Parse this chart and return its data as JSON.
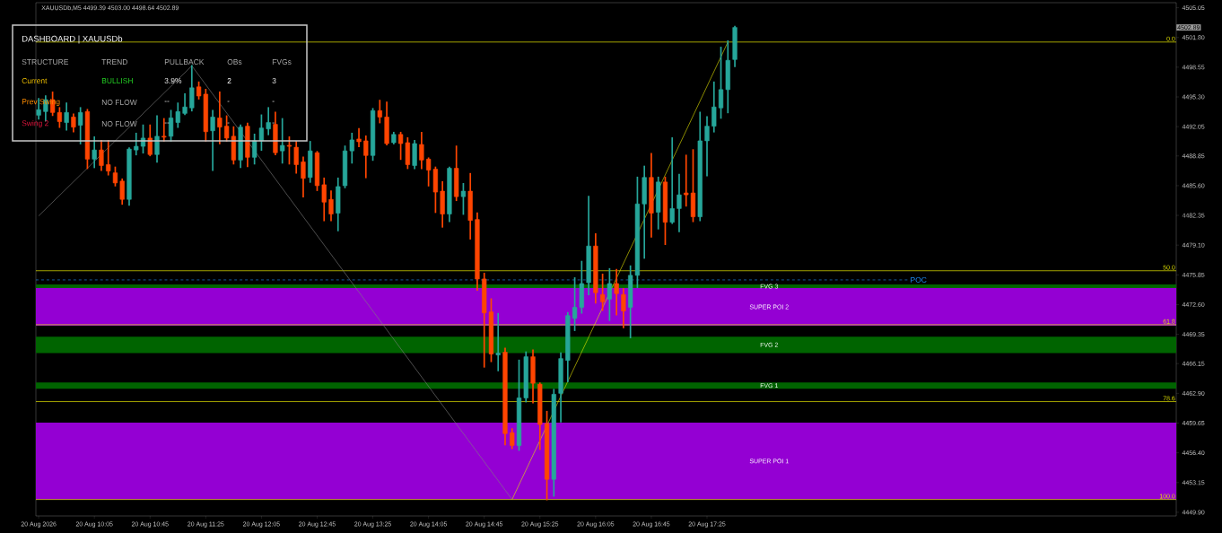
{
  "chart_data": {
    "type": "candlestick",
    "title": "XAUUSDb,M5  4499.39 4503.00 4498.64 4502.89",
    "x": [
      "2026-08-20T09:25",
      "2026-08-20T09:30",
      "2026-08-20T09:35",
      "2026-08-20T09:40",
      "2026-08-20T09:45",
      "2026-08-20T09:50",
      "2026-08-20T09:55",
      "2026-08-20T10:00",
      "2026-08-20T10:05",
      "2026-08-20T10:10",
      "2026-08-20T10:15",
      "2026-08-20T10:20",
      "2026-08-20T10:25",
      "2026-08-20T10:30",
      "2026-08-20T10:35",
      "2026-08-20T10:40",
      "2026-08-20T10:45",
      "2026-08-20T10:50",
      "2026-08-20T10:55",
      "2026-08-20T11:00",
      "2026-08-20T11:05",
      "2026-08-20T11:10",
      "2026-08-20T11:15",
      "2026-08-20T11:20",
      "2026-08-20T11:25",
      "2026-08-20T11:30",
      "2026-08-20T11:35",
      "2026-08-20T11:40",
      "2026-08-20T11:45",
      "2026-08-20T11:50",
      "2026-08-20T11:55",
      "2026-08-20T12:00",
      "2026-08-20T12:05",
      "2026-08-20T12:10",
      "2026-08-20T12:15",
      "2026-08-20T12:20",
      "2026-08-20T12:25",
      "2026-08-20T12:30",
      "2026-08-20T12:35",
      "2026-08-20T12:40",
      "2026-08-20T12:45",
      "2026-08-20T12:50",
      "2026-08-20T12:55",
      "2026-08-20T13:00",
      "2026-08-20T13:05",
      "2026-08-20T13:10",
      "2026-08-20T13:15",
      "2026-08-20T13:20",
      "2026-08-20T13:25",
      "2026-08-20T13:30",
      "2026-08-20T13:35",
      "2026-08-20T13:40",
      "2026-08-20T13:45",
      "2026-08-20T13:50",
      "2026-08-20T13:55",
      "2026-08-20T14:00",
      "2026-08-20T14:05",
      "2026-08-20T14:10",
      "2026-08-20T14:15",
      "2026-08-20T14:20",
      "2026-08-20T14:25",
      "2026-08-20T14:30",
      "2026-08-20T14:35",
      "2026-08-20T14:40",
      "2026-08-20T14:45",
      "2026-08-20T14:50",
      "2026-08-20T14:55",
      "2026-08-20T15:00",
      "2026-08-20T15:05",
      "2026-08-20T15:10",
      "2026-08-20T15:15",
      "2026-08-20T15:20",
      "2026-08-20T15:25",
      "2026-08-20T15:30",
      "2026-08-20T15:35",
      "2026-08-20T15:40",
      "2026-08-20T15:45",
      "2026-08-20T15:50",
      "2026-08-20T15:55",
      "2026-08-20T16:00",
      "2026-08-20T16:05",
      "2026-08-20T16:10",
      "2026-08-20T16:15",
      "2026-08-20T16:20",
      "2026-08-20T16:25",
      "2026-08-20T16:30",
      "2026-08-20T16:35",
      "2026-08-20T16:40",
      "2026-08-20T16:45",
      "2026-08-20T16:50",
      "2026-08-20T16:55",
      "2026-08-20T17:00",
      "2026-08-20T17:05",
      "2026-08-20T17:10",
      "2026-08-20T17:15",
      "2026-08-20T17:20",
      "2026-08-20T17:25",
      "2026-08-20T17:30",
      "2026-08-20T17:35",
      "2026-08-20T17:40",
      "2026-08-20T17:45"
    ],
    "ohlc": [
      [
        4493.3,
        4495.1,
        4492.9,
        4493.9
      ],
      [
        4493.7,
        4495.4,
        4492.7,
        4495.0
      ],
      [
        4495.0,
        4495.8,
        4493.3,
        4493.6
      ],
      [
        4493.6,
        4494.1,
        4492.0,
        4492.6
      ],
      [
        4492.5,
        4494.6,
        4491.7,
        4493.6
      ],
      [
        4493.1,
        4493.4,
        4491.5,
        4492.0
      ],
      [
        4492.2,
        4494.1,
        4490.2,
        4493.6
      ],
      [
        4493.7,
        4493.9,
        4487.5,
        4488.5
      ],
      [
        4488.5,
        4490.9,
        4487.6,
        4489.5
      ],
      [
        4489.5,
        4490.5,
        4487.3,
        4487.8
      ],
      [
        4487.9,
        4490.5,
        4486.8,
        4487.2
      ],
      [
        4487.0,
        4487.6,
        4485.6,
        4485.9
      ],
      [
        4486.1,
        4486.3,
        4483.6,
        4484.1
      ],
      [
        4484.1,
        4489.7,
        4483.5,
        4489.6
      ],
      [
        4489.5,
        4491.3,
        4489.0,
        4489.9
      ],
      [
        4489.9,
        4492.2,
        4489.2,
        4490.8
      ],
      [
        4490.8,
        4492.2,
        4488.9,
        4489.0
      ],
      [
        4489.0,
        4493.2,
        4488.2,
        4491.0
      ],
      [
        4491.0,
        4492.9,
        4490.5,
        4490.9
      ],
      [
        4491.0,
        4493.8,
        4490.5,
        4493.0
      ],
      [
        4492.5,
        4494.6,
        4492.0,
        4493.7
      ],
      [
        4493.5,
        4495.6,
        4493.4,
        4494.2
      ],
      [
        4494.1,
        4498.7,
        4493.8,
        4496.3
      ],
      [
        4496.4,
        4496.9,
        4495.1,
        4495.4
      ],
      [
        4495.6,
        4496.1,
        4490.5,
        4491.5
      ],
      [
        4491.6,
        4493.8,
        4487.3,
        4493.1
      ],
      [
        4493.0,
        4495.8,
        4490.2,
        4492.0
      ],
      [
        4492.1,
        4493.2,
        4490.5,
        4490.8
      ],
      [
        4491.0,
        4492.0,
        4488.0,
        4488.4
      ],
      [
        4488.4,
        4492.2,
        4487.6,
        4492.0
      ],
      [
        4492.1,
        4492.4,
        4487.7,
        4488.7
      ],
      [
        4488.7,
        4491.2,
        4488.0,
        4490.5
      ],
      [
        4490.5,
        4493.3,
        4489.5,
        4491.9
      ],
      [
        4491.8,
        4494.1,
        4491.2,
        4492.5
      ],
      [
        4492.3,
        4493.6,
        4489.0,
        4489.2
      ],
      [
        4489.4,
        4492.9,
        4488.1,
        4490.0
      ],
      [
        4490.0,
        4490.9,
        4488.0,
        4489.9
      ],
      [
        4489.8,
        4490.4,
        4487.0,
        4487.9
      ],
      [
        4488.2,
        4488.7,
        4484.4,
        4486.4
      ],
      [
        4486.5,
        4490.4,
        4486.0,
        4489.4
      ],
      [
        4489.2,
        4489.3,
        4485.1,
        4485.6
      ],
      [
        4485.7,
        4486.4,
        4481.8,
        4483.8
      ],
      [
        4484.1,
        4485.0,
        4481.8,
        4482.5
      ],
      [
        4482.6,
        4486.4,
        4480.7,
        4485.5
      ],
      [
        4485.6,
        4489.9,
        4485.4,
        4489.4
      ],
      [
        4489.4,
        4491.3,
        4488.1,
        4490.6
      ],
      [
        4490.7,
        4491.8,
        4489.9,
        4490.4
      ],
      [
        4490.5,
        4491.0,
        4486.5,
        4488.9
      ],
      [
        4488.9,
        4494.0,
        4488.4,
        4493.8
      ],
      [
        4493.8,
        4494.9,
        4492.5,
        4493.1
      ],
      [
        4493.1,
        4494.7,
        4490.1,
        4490.2
      ],
      [
        4490.3,
        4491.4,
        4490.2,
        4491.2
      ],
      [
        4491.2,
        4491.4,
        4488.5,
        4490.2
      ],
      [
        4490.3,
        4490.8,
        4487.5,
        4487.9
      ],
      [
        4487.8,
        4490.5,
        4487.5,
        4490.2
      ],
      [
        4490.1,
        4491.4,
        4487.5,
        4488.4
      ],
      [
        4488.5,
        4488.6,
        4485.6,
        4487.3
      ],
      [
        4487.4,
        4487.6,
        4482.7,
        4484.9
      ],
      [
        4485.0,
        4486.0,
        4481.1,
        4482.5
      ],
      [
        4482.5,
        4487.6,
        4481.7,
        4487.5
      ],
      [
        4487.5,
        4489.9,
        4484.0,
        4484.4
      ],
      [
        4484.4,
        4485.8,
        4482.5,
        4485.0
      ],
      [
        4485.0,
        4486.9,
        4479.8,
        4481.8
      ],
      [
        4481.9,
        4482.6,
        4474.2,
        4475.4
      ],
      [
        4475.4,
        4476.0,
        4465.8,
        4471.7
      ],
      [
        4471.8,
        4473.2,
        4466.4,
        4467.2
      ],
      [
        4467.1,
        4471.6,
        4465.4,
        4467.3
      ],
      [
        4467.4,
        4467.8,
        4457.3,
        4458.5
      ],
      [
        4458.6,
        4459.0,
        4456.9,
        4457.2
      ],
      [
        4457.2,
        4466.5,
        4456.7,
        4462.4
      ],
      [
        4462.4,
        4467.4,
        4462.0,
        4466.9
      ],
      [
        4466.9,
        4467.6,
        4461.9,
        4464.0
      ],
      [
        4463.9,
        4464.0,
        4456.8,
        4459.5
      ],
      [
        4459.6,
        4460.9,
        4451.3,
        4453.5
      ],
      [
        4453.5,
        4463.3,
        4451.7,
        4462.8
      ],
      [
        4462.9,
        4467.3,
        4459.8,
        4466.7
      ],
      [
        4466.5,
        4471.7,
        4464.2,
        4471.4
      ],
      [
        4471.1,
        4475.5,
        4469.8,
        4472.3
      ],
      [
        4472.3,
        4477.3,
        4471.7,
        4474.9
      ],
      [
        4475.0,
        4484.4,
        4473.7,
        4479.0
      ],
      [
        4479.0,
        4480.3,
        4472.8,
        4473.9
      ],
      [
        4473.7,
        4475.9,
        4472.0,
        4472.9
      ],
      [
        4473.2,
        4476.5,
        4470.9,
        4474.9
      ],
      [
        4474.9,
        4476.4,
        4471.5,
        4473.8
      ],
      [
        4473.7,
        4474.3,
        4470.1,
        4471.9
      ],
      [
        4472.3,
        4476.8,
        4469.0,
        4475.8
      ],
      [
        4475.8,
        4486.5,
        4474.5,
        4483.6
      ],
      [
        4483.6,
        4487.7,
        4477.7,
        4486.5
      ],
      [
        4486.5,
        4489.1,
        4480.0,
        4482.6
      ],
      [
        4482.7,
        4486.5,
        4480.9,
        4486.0
      ],
      [
        4486.0,
        4486.5,
        4479.2,
        4481.6
      ],
      [
        4481.6,
        4490.8,
        4481.5,
        4483.1
      ],
      [
        4483.1,
        4486.8,
        4480.6,
        4484.6
      ],
      [
        4484.8,
        4488.9,
        4483.4,
        4484.6
      ],
      [
        4484.8,
        4489.5,
        4481.7,
        4482.2
      ],
      [
        4482.2,
        4493.6,
        4481.8,
        4490.5
      ],
      [
        4490.5,
        4493.1,
        4486.7,
        4492.1
      ],
      [
        4492.1,
        4496.9,
        4491.5,
        4494.2
      ],
      [
        4494.1,
        4500.7,
        4493.0,
        4496.1
      ],
      [
        4496.1,
        4501.4,
        4493.6,
        4499.3
      ],
      [
        4499.39,
        4503.0,
        4498.64,
        4502.89
      ]
    ],
    "colors": [
      "#26a69a",
      "#26a69a",
      "#ff4500",
      "#ff4500",
      "#26a69a",
      "#ff4500",
      "#26a69a",
      "#ff4500",
      "#26a69a",
      "#ff4500",
      "#ff4500",
      "#ff4500",
      "#ff4500",
      "#26a69a",
      "#26a69a",
      "#26a69a",
      "#ff4500",
      "#26a69a",
      "#ff4500",
      "#26a69a",
      "#26a69a",
      "#26a69a",
      "#26a69a",
      "#ff4500",
      "#ff4500",
      "#26a69a",
      "#ff4500",
      "#ff4500",
      "#ff4500",
      "#26a69a",
      "#ff4500",
      "#26a69a",
      "#26a69a",
      "#26a69a",
      "#ff4500",
      "#26a69a",
      "#ff4500",
      "#ff4500",
      "#ff4500",
      "#26a69a",
      "#ff4500",
      "#ff4500",
      "#ff4500",
      "#26a69a",
      "#26a69a",
      "#26a69a",
      "#ff4500",
      "#ff4500",
      "#26a69a",
      "#ff4500",
      "#ff4500",
      "#26a69a",
      "#ff4500",
      "#ff4500",
      "#26a69a",
      "#ff4500",
      "#ff4500",
      "#ff4500",
      "#ff4500",
      "#26a69a",
      "#ff4500",
      "#26a69a",
      "#ff4500",
      "#ff4500",
      "#ff4500",
      "#ff4500",
      "#26a69a",
      "#ff4500",
      "#ff4500",
      "#26a69a",
      "#26a69a",
      "#ff4500",
      "#ff4500",
      "#ff4500",
      "#26a69a",
      "#26a69a",
      "#26a69a",
      "#26a69a",
      "#26a69a",
      "#26a69a",
      "#ff4500",
      "#ff4500",
      "#26a69a",
      "#ff4500",
      "#ff4500",
      "#26a69a",
      "#26a69a",
      "#26a69a",
      "#ff4500",
      "#26a69a",
      "#ff4500",
      "#26a69a",
      "#26a69a",
      "#ff4500",
      "#ff4500",
      "#26a69a",
      "#26a69a",
      "#26a69a",
      "#26a69a",
      "#26a69a",
      "#26a69a"
    ],
    "series": [
      {
        "type": "line",
        "color": "#808080",
        "x": [
          "2026-08-20T09:25",
          "2026-08-20T11:15",
          "2026-08-20T15:05"
        ],
        "values": [
          4482.3,
          4498.7,
          4451.3
        ]
      },
      {
        "type": "line",
        "color": "#e6e600",
        "x": [
          "2026-08-20T15:05",
          "2026-08-20T17:40"
        ],
        "values": [
          4451.3,
          4501.3
        ]
      }
    ],
    "xlim": [
      "2026-08-20T09:23",
      "2026-08-20T23:02"
    ],
    "ylim": [
      4449.5,
      4505.6
    ],
    "xticks": [
      {
        "value": "2026-08-20T09:25",
        "label": "20 Aug 2026"
      },
      {
        "value": "2026-08-20T10:05",
        "label": "20 Aug 10:05"
      },
      {
        "value": "2026-08-20T10:45",
        "label": "20 Aug 10:45"
      },
      {
        "value": "2026-08-20T11:25",
        "label": "20 Aug 11:25"
      },
      {
        "value": "2026-08-20T12:05",
        "label": "20 Aug 12:05"
      },
      {
        "value": "2026-08-20T12:45",
        "label": "20 Aug 12:45"
      },
      {
        "value": "2026-08-20T13:25",
        "label": "20 Aug 13:25"
      },
      {
        "value": "2026-08-20T14:05",
        "label": "20 Aug 14:05"
      },
      {
        "value": "2026-08-20T14:45",
        "label": "20 Aug 14:45"
      },
      {
        "value": "2026-08-20T15:25",
        "label": "20 Aug 15:25"
      },
      {
        "value": "2026-08-20T16:05",
        "label": "20 Aug 16:05"
      },
      {
        "value": "2026-08-20T16:45",
        "label": "20 Aug 16:45"
      },
      {
        "value": "2026-08-20T17:25",
        "label": "20 Aug 17:25"
      }
    ],
    "yticks": [
      {
        "value": 4505.05,
        "label": "4505.05"
      },
      {
        "value": 4501.8,
        "label": "4501.80"
      },
      {
        "value": 4498.55,
        "label": "4498.55"
      },
      {
        "value": 4495.3,
        "label": "4495.30"
      },
      {
        "value": 4492.05,
        "label": "4492.05"
      },
      {
        "value": 4488.85,
        "label": "4488.85"
      },
      {
        "value": 4485.6,
        "label": "4485.60"
      },
      {
        "value": 4482.35,
        "label": "4482.35"
      },
      {
        "value": 4479.1,
        "label": "4479.10"
      },
      {
        "value": 4475.85,
        "label": "4475.85"
      },
      {
        "value": 4472.6,
        "label": "4472.60"
      },
      {
        "value": 4469.35,
        "label": "4469.35"
      },
      {
        "value": 4466.15,
        "label": "4466.15"
      },
      {
        "value": 4462.9,
        "label": "4462.90"
      },
      {
        "value": 4459.65,
        "label": "4459.65"
      },
      {
        "value": 4456.4,
        "label": "4456.40"
      },
      {
        "value": 4453.15,
        "label": "4453.15"
      },
      {
        "value": 4449.9,
        "label": "4449.90"
      }
    ],
    "ref_lines": [
      {
        "axis": "y",
        "value": 4501.3,
        "color": "#e6e600"
      },
      {
        "axis": "y",
        "value": 4476.3,
        "color": "#e6e600"
      },
      {
        "axis": "y",
        "value": 4470.4,
        "color": "#e6e600"
      },
      {
        "axis": "y",
        "value": 4462.0,
        "color": "#e6e600"
      },
      {
        "axis": "y",
        "value": 4451.3,
        "color": "#e6e600"
      },
      {
        "axis": "y",
        "value": 4475.3,
        "label": "POC",
        "color": "#1e90ff",
        "line_style": "dashed"
      }
    ],
    "bands": [
      {
        "axis": "y",
        "from": 4474.4,
        "to": 4474.8,
        "label": "FVG 3",
        "color": "#006400"
      },
      {
        "axis": "y",
        "from": 4470.3,
        "to": 4474.4,
        "label": "SUPER POI 2",
        "color": "#9400d3"
      },
      {
        "axis": "y",
        "from": 4467.3,
        "to": 4469.1,
        "label": "FVG 2",
        "color": "#006400"
      },
      {
        "axis": "y",
        "from": 4463.4,
        "to": 4464.1,
        "label": "FVG 1",
        "color": "#006400"
      },
      {
        "axis": "y",
        "from": 4451.3,
        "to": 4459.7,
        "label": "SUPER POI 1",
        "color": "#9400d3"
      }
    ],
    "annotations": [
      "DASHBOARD | XAUUSDb",
      "STRUCTURE",
      "TREND",
      "PULLBACK",
      "OBs",
      "FVGs",
      "Current",
      "BULLISH",
      "3.9%",
      "2",
      "3",
      "Prev Swing",
      "NO FLOW",
      "--",
      "-",
      "-",
      "Swing 2",
      "NO FLOW",
      "--",
      "-",
      "-",
      "4502.89",
      {
        "text": "0.0",
        "x": "2026-08-20T23:02",
        "y": 4501.3
      },
      {
        "text": "50.0",
        "x": "2026-08-20T23:02",
        "y": 4476.3
      },
      {
        "text": "61.8",
        "x": "2026-08-20T23:02",
        "y": 4470.4
      },
      {
        "text": "78.6",
        "x": "2026-08-20T23:02",
        "y": 4462.0
      },
      {
        "text": "100.0",
        "x": "2026-08-20T23:02",
        "y": 4451.3
      }
    ]
  }
}
